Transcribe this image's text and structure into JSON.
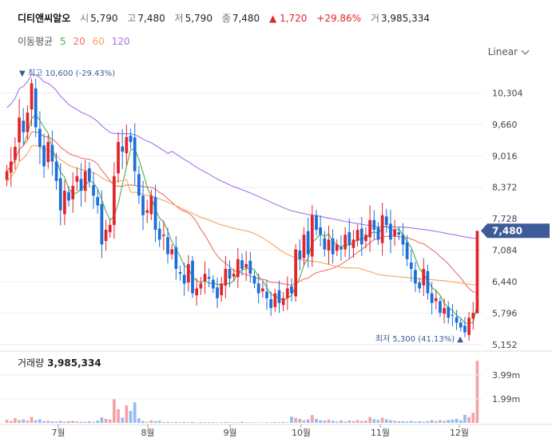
{
  "header": {
    "name": "디티앤씨알오",
    "open_label": "시",
    "open": "5,790",
    "high_label": "고",
    "high": "7,480",
    "low_label": "저",
    "low": "5,790",
    "close_label": "종",
    "close": "7,480",
    "change": "1,720",
    "change_pct": "+29.86%",
    "volume_label": "거",
    "volume": "3,985,334"
  },
  "ma": {
    "label": "이동평균",
    "periods": [
      "5",
      "20",
      "60",
      "120"
    ],
    "colors": [
      "#4cae4c",
      "#f0706a",
      "#f5a65b",
      "#a872e8"
    ]
  },
  "scale_selector": {
    "value": "Linear",
    "icon": "chevron-down-icon"
  },
  "colors": {
    "up": "#e0252b",
    "down": "#1a6fd8",
    "tag": "#3d5a99",
    "grid": "#eeeeee"
  },
  "volume_panel": {
    "label": "거래량",
    "value": "3,985,334"
  },
  "chart_data": {
    "type": "candlestick",
    "price_axis": {
      "ticks": [
        10304,
        9660,
        9016,
        8372,
        7728,
        7084,
        6440,
        5796,
        5152
      ],
      "range": [
        5050,
        10900
      ]
    },
    "x_labels": [
      "7월",
      "8월",
      "9월",
      "10월",
      "11월",
      "12월"
    ],
    "last_price": "7,480",
    "high_marker": {
      "text": "최고 10,600 (-29.43%)",
      "value": 10600
    },
    "low_marker": {
      "text": "최저 5,300 (41.13%)",
      "value": 5300
    },
    "volume_axis": {
      "ticks": [
        "3.99m",
        "1.99m"
      ],
      "range": [
        0,
        4200000
      ]
    },
    "ohlc_days": [
      {
        "month": "7월",
        "start": 7,
        "days": 22
      },
      {
        "month": "8월",
        "start": 29,
        "days": 21
      },
      {
        "month": "9월",
        "start": 50,
        "days": 19
      },
      {
        "month": "10월",
        "start": 69,
        "days": 18
      },
      {
        "month": "11월",
        "start": 87,
        "days": 20
      },
      {
        "month": "12월",
        "start": 107,
        "days": 6
      }
    ],
    "closes": [
      8700,
      8900,
      9200,
      9800,
      9500,
      9900,
      10500,
      9600,
      9200,
      8800,
      9300,
      8900,
      8500,
      7900,
      8300,
      8100,
      8400,
      8600,
      8300,
      8700,
      8500,
      8200,
      8000,
      7200,
      7500,
      7600,
      8600,
      9300,
      9100,
      9400,
      9300,
      8700,
      8200,
      7800,
      7900,
      8200,
      7500,
      7300,
      7400,
      7000,
      7100,
      6700,
      6600,
      6400,
      6800,
      6200,
      6300,
      6400,
      6600,
      6500,
      6300,
      6100,
      6400,
      6700,
      6500,
      6600,
      6900,
      6700,
      6800,
      6600,
      6400,
      6200,
      6300,
      6100,
      5900,
      6200,
      6000,
      6100,
      6300,
      6200,
      7100,
      6900,
      7400,
      7000,
      7800,
      7500,
      7400,
      7100,
      7300,
      7000,
      7200,
      7100,
      7400,
      7200,
      7300,
      7500,
      7200,
      7400,
      7700,
      7500,
      7300,
      7800,
      7600,
      7300,
      7500,
      7400,
      7200,
      6900,
      6700,
      6400,
      6300,
      6700,
      6200,
      6000,
      6100,
      5800,
      5900,
      5700,
      5750,
      5600,
      5500,
      5400,
      5700,
      5800,
      7480
    ],
    "volumes_k": [
      200,
      120,
      300,
      180,
      220,
      150,
      380,
      160,
      230,
      110,
      140,
      100,
      90,
      120,
      80,
      110,
      130,
      90,
      70,
      80,
      100,
      60,
      150,
      350,
      260,
      210,
      1520,
      880,
      340,
      1120,
      770,
      1320,
      290,
      120,
      60,
      160,
      110,
      130,
      60,
      60,
      40,
      70,
      30,
      60,
      40,
      60,
      30,
      50,
      40,
      40,
      40,
      30,
      40,
      60,
      40,
      40,
      40,
      70,
      30,
      40,
      30,
      20,
      20,
      40,
      30,
      50,
      40,
      60,
      30,
      400,
      320,
      250,
      170,
      220,
      500,
      260,
      170,
      150,
      210,
      140,
      90,
      160,
      80,
      150,
      120,
      180,
      120,
      150,
      380,
      240,
      190,
      330,
      230,
      170,
      140,
      100,
      110,
      90,
      120,
      80,
      110,
      70,
      110,
      180,
      120,
      170,
      130,
      190,
      200,
      260,
      170,
      510,
      370,
      660,
      3985
    ]
  }
}
